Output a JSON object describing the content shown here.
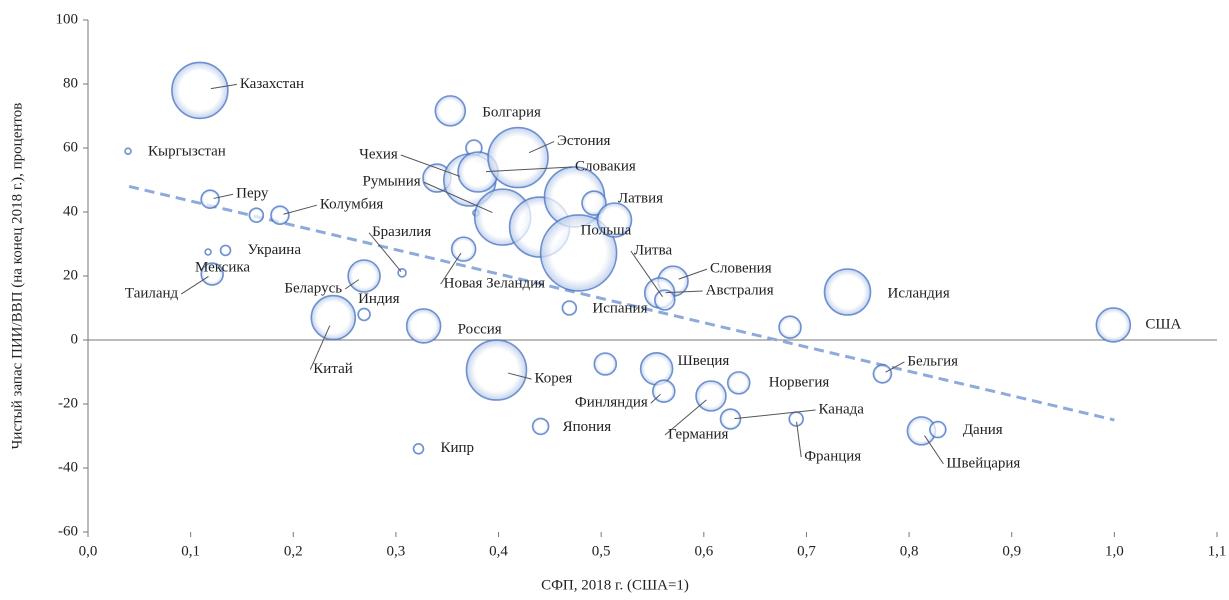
{
  "chart_data": {
    "type": "bubble",
    "x_label": "СФП, 2018 г. (США=1)",
    "y_label": "Чистый запас ПИИ/ВВП (на конец 2018 г.), процентов",
    "color": "#4472c4",
    "names": [
      "Казахстан",
      "Кыргызстан",
      "Перу",
      null,
      "Колумбия",
      "Украина",
      "Мексика",
      "Таиланд",
      "Беларусь",
      "Индия",
      "Китай",
      "Бразилия",
      "Россия",
      "Кипр",
      "Новая Зеландия",
      "Болгария",
      null,
      null,
      "Чехия",
      "Словакия",
      "Эстония",
      null,
      "Румыния",
      null,
      null,
      "Польша",
      "Латвия",
      null,
      "Испания",
      "Словения",
      "Австралия",
      "Литва",
      null,
      "Исландия",
      "США",
      "Бельгия",
      "Корея",
      null,
      "Швеция",
      "Финляндия",
      "Германия",
      "Норвегия",
      "Канада",
      "Франция",
      "Япония",
      "Швейцария",
      "Дания"
    ],
    "x": [
      0.109,
      0.039,
      0.119,
      0.164,
      0.187,
      0.134,
      0.117,
      0.121,
      0.269,
      0.269,
      0.239,
      0.306,
      0.327,
      0.322,
      0.366,
      0.353,
      0.376,
      0.34,
      0.372,
      0.38,
      0.419,
      0.378,
      0.404,
      0.44,
      0.474,
      0.478,
      0.493,
      0.513,
      0.469,
      0.57,
      0.557,
      0.562,
      0.684,
      0.74,
      0.999,
      0.774,
      0.398,
      0.504,
      0.554,
      0.561,
      0.607,
      0.634,
      0.626,
      0.69,
      0.441,
      0.812,
      0.828
    ],
    "y": [
      78,
      59,
      44,
      39,
      39,
      28,
      27.5,
      20.6,
      20,
      8,
      7,
      21,
      4.4,
      -34,
      28.4,
      71.6,
      60,
      50.6,
      50,
      52.5,
      57,
      39.7,
      38.4,
      35.3,
      44.7,
      27.2,
      42.8,
      37.5,
      10,
      18.4,
      14.7,
      12.5,
      4,
      15,
      4.7,
      -10.6,
      -9.4,
      -7.5,
      -9,
      -16,
      -17.5,
      -13.4,
      -24.7,
      -24.7,
      -27,
      -28.4,
      -28
    ],
    "sizes": [
      28,
      3,
      9,
      7,
      9,
      5,
      3,
      11,
      16,
      6,
      22,
      4,
      17,
      5,
      12,
      15,
      8,
      14,
      26,
      20,
      30,
      3,
      28,
      30,
      30,
      38,
      12,
      17,
      7,
      15,
      15,
      10,
      11,
      23,
      17,
      9,
      30,
      11,
      16,
      11,
      15,
      11,
      10,
      7,
      8,
      14,
      8
    ],
    "trendline": {
      "x": [
        0.04,
        1.0
      ],
      "y": [
        48,
        -25
      ]
    },
    "xlim": [
      0,
      1.1
    ],
    "xticks": [
      {
        "value": 0,
        "label": "0,0"
      },
      {
        "value": 0.1,
        "label": "0,1"
      },
      {
        "value": 0.2,
        "label": "0,2"
      },
      {
        "value": 0.3,
        "label": "0,3"
      },
      {
        "value": 0.4,
        "label": "0,4"
      },
      {
        "value": 0.5,
        "label": "0,5"
      },
      {
        "value": 0.6,
        "label": "0,6"
      },
      {
        "value": 0.7,
        "label": "0,7"
      },
      {
        "value": 0.8,
        "label": "0,8"
      },
      {
        "value": 0.9,
        "label": "0,9"
      },
      {
        "value": 1.0,
        "label": "1,0"
      },
      {
        "value": 1.1,
        "label": "1,1"
      }
    ],
    "ylim": [
      -60,
      100
    ],
    "yticks": [
      -60,
      -40,
      -20,
      0,
      20,
      40,
      60,
      80,
      100
    ]
  }
}
